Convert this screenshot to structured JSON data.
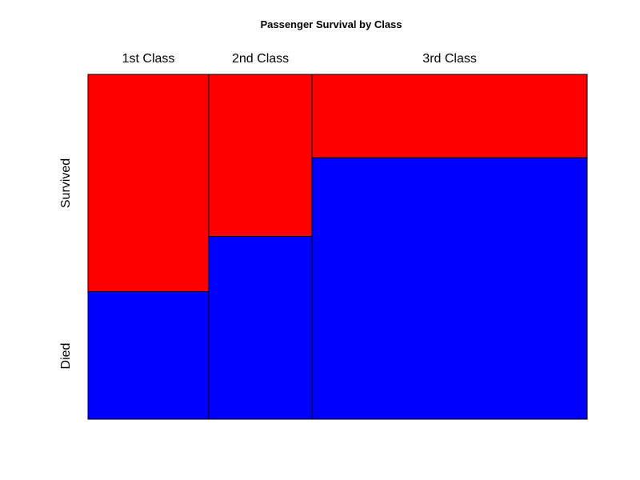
{
  "chart_data": {
    "type": "mosaic",
    "title": "Passenger Survival by Class",
    "categories": [
      "1st Class",
      "2nd Class",
      "3rd Class"
    ],
    "class_share": [
      0.242,
      0.207,
      0.551
    ],
    "series": [
      {
        "name": "Died",
        "color": "#0000ff",
        "values": [
          0.37,
          0.53,
          0.758
        ]
      },
      {
        "name": "Survived",
        "color": "#ff0000",
        "values": [
          0.63,
          0.47,
          0.242
        ]
      }
    ],
    "row_labels": [
      "Survived",
      "Died"
    ],
    "grid": false,
    "legend": "none"
  }
}
